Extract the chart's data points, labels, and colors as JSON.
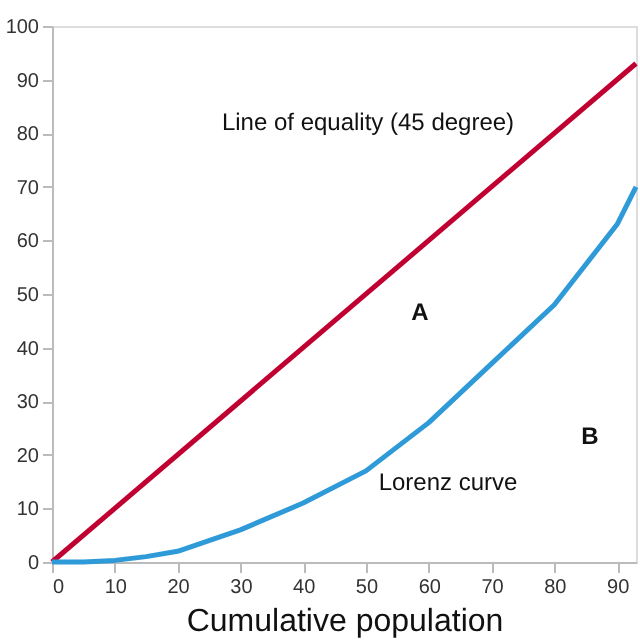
{
  "chart_data": {
    "type": "line",
    "xlabel": "Cumulative population",
    "series": [
      {
        "color": "#c00030",
        "x": [
          0,
          93
        ],
        "values": [
          0,
          93
        ]
      },
      {
        "color": "#2e9ad8",
        "x": [
          0,
          5,
          10,
          15,
          20,
          30,
          40,
          50,
          60,
          70,
          80,
          90,
          93
        ],
        "values": [
          0,
          0,
          0.3,
          1,
          2,
          6,
          11,
          17,
          26,
          37,
          48,
          63,
          70
        ]
      }
    ],
    "annotations": [
      "Line of equality (45 degree)",
      "A",
      "Lorenz curve",
      "B"
    ],
    "xlim": [
      0,
      93
    ],
    "ylim": [
      0,
      100
    ],
    "xticks": [
      0,
      10,
      20,
      30,
      40,
      50,
      60,
      70,
      80,
      90
    ],
    "yticks": [
      0,
      10,
      20,
      30,
      40,
      50,
      60,
      70,
      80,
      90,
      100
    ],
    "grid": false,
    "marker": "none",
    "line_style": "solid"
  }
}
